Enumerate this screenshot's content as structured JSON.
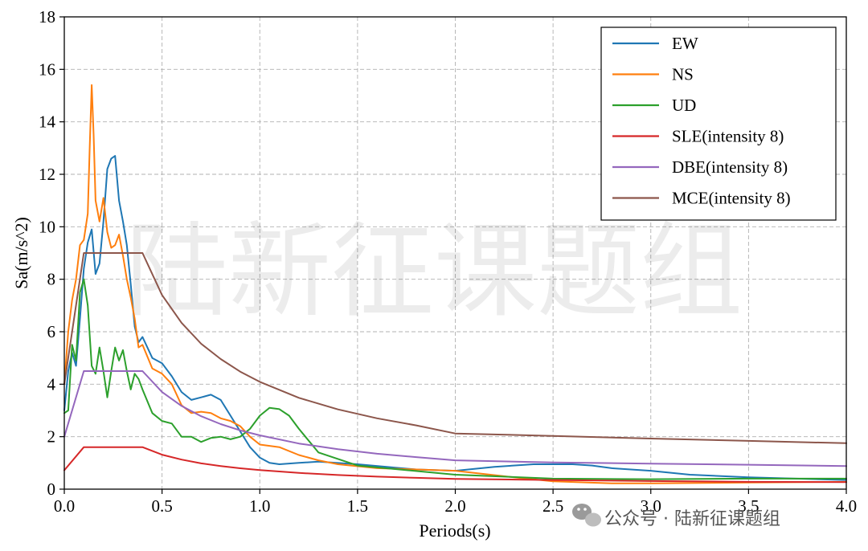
{
  "watermark": {
    "text": "陆新征课题组",
    "footer_text": "公众号 · 陆新征课题组"
  },
  "chart_data": {
    "type": "line",
    "title": "",
    "xlabel": "Periods(s)",
    "ylabel": "Sa(m/s^2)",
    "xlim": [
      0,
      4.0
    ],
    "ylim": [
      0,
      18
    ],
    "xticks": [
      0.0,
      0.5,
      1.0,
      1.5,
      2.0,
      2.5,
      3.0,
      3.5,
      4.0
    ],
    "xtick_labels": [
      "0.0",
      "0.5",
      "1.0",
      "1.5",
      "2.0",
      "2.5",
      "3.0",
      "3.5",
      "4.0"
    ],
    "yticks": [
      0,
      2,
      4,
      6,
      8,
      10,
      12,
      14,
      16,
      18
    ],
    "ytick_labels": [
      "0",
      "2",
      "4",
      "6",
      "8",
      "10",
      "12",
      "14",
      "16",
      "18"
    ],
    "grid": true,
    "legend_position": "top-right",
    "series": [
      {
        "name": "EW",
        "color": "#1f77b4",
        "x": [
          0,
          0.02,
          0.04,
          0.06,
          0.08,
          0.1,
          0.12,
          0.14,
          0.16,
          0.18,
          0.2,
          0.22,
          0.24,
          0.26,
          0.28,
          0.3,
          0.32,
          0.34,
          0.36,
          0.38,
          0.4,
          0.45,
          0.5,
          0.55,
          0.6,
          0.65,
          0.7,
          0.75,
          0.8,
          0.85,
          0.9,
          0.95,
          1.0,
          1.05,
          1.1,
          1.2,
          1.3,
          1.5,
          1.8,
          2.0,
          2.2,
          2.4,
          2.6,
          2.7,
          2.8,
          3.0,
          3.2,
          3.5,
          4.0
        ],
        "y": [
          3.0,
          4.5,
          5.2,
          4.7,
          6.5,
          8.4,
          9.4,
          9.9,
          8.2,
          8.6,
          10.2,
          12.2,
          12.6,
          12.7,
          11.0,
          10.2,
          9.3,
          7.8,
          6.2,
          5.6,
          5.8,
          5.0,
          4.8,
          4.3,
          3.7,
          3.4,
          3.5,
          3.6,
          3.4,
          2.8,
          2.2,
          1.6,
          1.2,
          1.0,
          0.95,
          1.0,
          1.05,
          0.95,
          0.75,
          0.7,
          0.85,
          0.95,
          0.95,
          0.9,
          0.8,
          0.7,
          0.55,
          0.45,
          0.35
        ]
      },
      {
        "name": "NS",
        "color": "#ff7f0e",
        "x": [
          0,
          0.02,
          0.04,
          0.06,
          0.08,
          0.1,
          0.12,
          0.13,
          0.14,
          0.15,
          0.16,
          0.18,
          0.2,
          0.22,
          0.24,
          0.26,
          0.28,
          0.3,
          0.32,
          0.34,
          0.36,
          0.38,
          0.4,
          0.45,
          0.5,
          0.55,
          0.6,
          0.65,
          0.7,
          0.75,
          0.8,
          0.85,
          0.9,
          0.95,
          1.0,
          1.1,
          1.2,
          1.3,
          1.4,
          1.6,
          2.0,
          2.3,
          2.5,
          2.8,
          3.0,
          3.5,
          4.0
        ],
        "y": [
          4.0,
          6.0,
          7.2,
          8.0,
          9.3,
          9.5,
          10.5,
          13.0,
          15.4,
          13.5,
          11.0,
          10.2,
          11.1,
          9.8,
          9.2,
          9.3,
          9.7,
          8.9,
          8.0,
          7.3,
          6.5,
          5.4,
          5.5,
          4.6,
          4.4,
          4.0,
          3.2,
          2.9,
          2.95,
          2.9,
          2.7,
          2.6,
          2.4,
          2.0,
          1.7,
          1.6,
          1.3,
          1.1,
          0.95,
          0.8,
          0.7,
          0.45,
          0.3,
          0.22,
          0.22,
          0.25,
          0.28
        ]
      },
      {
        "name": "UD",
        "color": "#2ca02c",
        "x": [
          0,
          0.02,
          0.04,
          0.06,
          0.08,
          0.1,
          0.12,
          0.14,
          0.16,
          0.18,
          0.2,
          0.22,
          0.24,
          0.26,
          0.28,
          0.3,
          0.32,
          0.34,
          0.36,
          0.38,
          0.4,
          0.45,
          0.5,
          0.55,
          0.6,
          0.65,
          0.7,
          0.75,
          0.8,
          0.85,
          0.9,
          0.95,
          1.0,
          1.05,
          1.1,
          1.15,
          1.2,
          1.3,
          1.5,
          2.0,
          2.5,
          3.0,
          3.5,
          4.0
        ],
        "y": [
          2.9,
          3.0,
          5.5,
          4.9,
          7.5,
          8.0,
          7.0,
          4.7,
          4.4,
          5.4,
          4.5,
          3.5,
          4.5,
          5.4,
          4.9,
          5.3,
          4.5,
          3.8,
          4.4,
          4.2,
          3.8,
          2.9,
          2.6,
          2.5,
          2.0,
          2.0,
          1.8,
          1.95,
          2.0,
          1.9,
          2.0,
          2.3,
          2.8,
          3.1,
          3.05,
          2.8,
          2.3,
          1.4,
          0.9,
          0.55,
          0.4,
          0.38,
          0.4,
          0.4
        ]
      },
      {
        "name": "SLE(intensity 8)",
        "color": "#d62728",
        "x": [
          0,
          0.1,
          0.4,
          0.5,
          0.6,
          0.7,
          0.8,
          0.9,
          1.0,
          1.2,
          1.4,
          1.6,
          1.8,
          2.0,
          2.5,
          3.0,
          3.5,
          4.0
        ],
        "y": [
          0.72,
          1.6,
          1.6,
          1.314,
          1.126,
          0.984,
          0.882,
          0.796,
          0.727,
          0.618,
          0.539,
          0.479,
          0.432,
          0.393,
          0.35,
          0.31,
          0.28,
          0.27
        ]
      },
      {
        "name": "DBE(intensity 8)",
        "color": "#9467bd",
        "x": [
          0,
          0.1,
          0.4,
          0.5,
          0.6,
          0.7,
          0.8,
          0.9,
          1.0,
          1.2,
          1.4,
          1.6,
          1.8,
          2.0,
          2.5,
          3.0,
          3.5,
          4.0
        ],
        "y": [
          2.0,
          4.5,
          4.5,
          3.7,
          3.17,
          2.78,
          2.48,
          2.24,
          2.05,
          1.74,
          1.52,
          1.35,
          1.22,
          1.1,
          1.02,
          0.97,
          0.93,
          0.88
        ]
      },
      {
        "name": "MCE(intensity 8)",
        "color": "#8c564b",
        "x": [
          0,
          0.1,
          0.4,
          0.5,
          0.6,
          0.7,
          0.8,
          0.9,
          1.0,
          1.2,
          1.4,
          1.6,
          1.8,
          2.0,
          2.5,
          3.0,
          3.5,
          4.0
        ],
        "y": [
          4.0,
          9.0,
          9.0,
          7.4,
          6.34,
          5.54,
          4.96,
          4.48,
          4.09,
          3.48,
          3.04,
          2.7,
          2.43,
          2.12,
          2.03,
          1.93,
          1.84,
          1.75
        ]
      }
    ]
  }
}
